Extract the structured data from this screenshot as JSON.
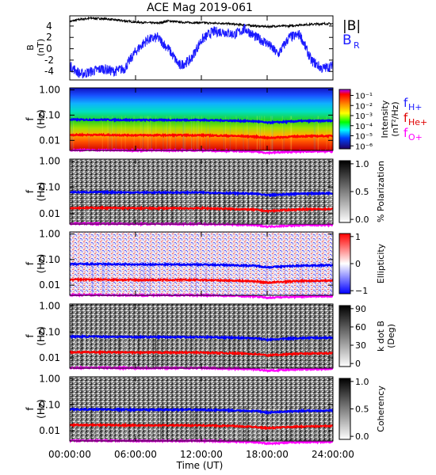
{
  "title": "ACE Mag 2019-061",
  "xlabel": "Time (UT)",
  "x_ticks": [
    "00:00:00",
    "06:00:00",
    "12:00:00",
    "18:00:00",
    "24:00:00"
  ],
  "x_tick_hours": [
    0,
    6,
    12,
    18,
    24
  ],
  "freq_ticks": [
    "1.00",
    "0.10",
    "0.01"
  ],
  "freq_tick_values": [
    1.0,
    0.1,
    0.01
  ],
  "freq_range_hz": [
    0.004,
    1.2
  ],
  "panel_ylabel_f": "f",
  "panel_ylabel_hz": "(Hz)",
  "colors": {
    "B_total": "#000000",
    "B_R": "#1a1aff",
    "f_H": "#0000ff",
    "f_He": "#ff0000",
    "f_O": "#ff00ff"
  },
  "legends": {
    "B_total_label": "|B|",
    "B_R_label": "B",
    "B_R_sub": "R",
    "fH_label": "f",
    "fH_sub": "H+",
    "fHe_label": "f",
    "fHe_sub": "He+",
    "fO_label": "f",
    "fO_sub": "O+"
  },
  "colorbars": [
    {
      "label_line1": "Intensity",
      "label_line2": "(nT²/Hz)",
      "ticks": [
        "10⁻¹",
        "10⁻²",
        "10⁻³",
        "10⁻⁴",
        "10⁻⁵",
        "10⁻⁶"
      ],
      "tick_fracs": [
        0.1,
        0.27,
        0.44,
        0.61,
        0.78,
        0.95
      ],
      "scale": "rainbow"
    },
    {
      "label_line1": "% Polarization",
      "label_line2": "",
      "ticks": [
        "1.0",
        "0.5",
        "0.0"
      ],
      "tick_fracs": [
        0.05,
        0.5,
        0.95
      ],
      "scale": "gray"
    },
    {
      "label_line1": "Ellipticity",
      "label_line2": "",
      "ticks": [
        "1",
        "0",
        "−1"
      ],
      "tick_fracs": [
        0.05,
        0.5,
        0.95
      ],
      "scale": "bwr"
    },
    {
      "label_line1": "k dot B",
      "label_line2": "(Deg)",
      "ticks": [
        "90",
        "60",
        "30",
        "0"
      ],
      "tick_fracs": [
        0.05,
        0.35,
        0.65,
        0.95
      ],
      "scale": "gray"
    },
    {
      "label_line1": "Coherency",
      "label_line2": "",
      "ticks": [
        "1.0",
        "0.5",
        "0.0"
      ],
      "tick_fracs": [
        0.05,
        0.5,
        0.95
      ],
      "scale": "gray"
    }
  ],
  "chart_data": [
    {
      "type": "line",
      "title": "ACE Mag 2019-061",
      "ylabel": "B (nT)",
      "yticks": [
        4,
        2,
        0,
        -2,
        -4
      ],
      "ylim": [
        -5.5,
        5.8
      ],
      "series": [
        {
          "name": "|B|",
          "x_hours": [
            0,
            1,
            2,
            3,
            4,
            5,
            6,
            7,
            8,
            9,
            10,
            11,
            12,
            13,
            14,
            15,
            16,
            17,
            18,
            19,
            20,
            21,
            22,
            23,
            24
          ],
          "values": [
            4.8,
            5.2,
            5.4,
            5.3,
            5.1,
            4.9,
            4.7,
            4.6,
            4.5,
            4.9,
            4.7,
            4.6,
            4.6,
            4.5,
            4.5,
            4.3,
            4.2,
            4.0,
            3.9,
            4.0,
            4.0,
            4.2,
            4.3,
            4.4,
            4.4
          ]
        },
        {
          "name": "B_R",
          "x_hours": [
            0,
            1,
            2,
            3,
            4,
            5,
            6,
            7,
            8,
            9,
            10,
            11,
            12,
            13,
            14,
            15,
            16,
            17,
            18,
            19,
            20,
            21,
            22,
            23,
            24
          ],
          "values": [
            -3.0,
            -4.5,
            -4.0,
            -3.5,
            -4.0,
            -3.5,
            -0.5,
            1.5,
            2.0,
            0.0,
            -3.0,
            -2.0,
            1.5,
            3.0,
            3.0,
            2.5,
            3.5,
            2.0,
            1.0,
            -1.0,
            2.0,
            2.5,
            -2.0,
            -3.5,
            -3.0
          ]
        }
      ]
    },
    {
      "type": "heatmap",
      "ylabel": "f (Hz)",
      "colorbar": "Intensity (nT²/Hz)",
      "series": [
        {
          "name": "f_H+",
          "x_hours": [
            0,
            3,
            6,
            9,
            12,
            15,
            17,
            18,
            21,
            24
          ],
          "values": [
            0.066,
            0.066,
            0.064,
            0.064,
            0.064,
            0.06,
            0.057,
            0.05,
            0.058,
            0.06
          ]
        },
        {
          "name": "f_He+",
          "x_hours": [
            0,
            3,
            6,
            9,
            12,
            15,
            17,
            18,
            21,
            24
          ],
          "values": [
            0.0165,
            0.0165,
            0.016,
            0.016,
            0.016,
            0.015,
            0.014,
            0.0125,
            0.0145,
            0.015
          ]
        },
        {
          "name": "f_O+",
          "x_hours": [
            0,
            3,
            6,
            9,
            12,
            15,
            17,
            18,
            21,
            24
          ],
          "values": [
            0.0041,
            0.0041,
            0.004,
            0.004,
            0.004,
            0.0038,
            0.0036,
            0.0032,
            0.0036,
            0.0037
          ]
        }
      ]
    },
    {
      "type": "heatmap",
      "ylabel": "f (Hz)",
      "colorbar": "% Polarization",
      "zlim": [
        0.0,
        1.0
      ]
    },
    {
      "type": "heatmap",
      "ylabel": "f (Hz)",
      "colorbar": "Ellipticity",
      "zlim": [
        -1,
        1
      ]
    },
    {
      "type": "heatmap",
      "ylabel": "f (Hz)",
      "colorbar": "k dot B (Deg)",
      "zlim": [
        0,
        90
      ]
    },
    {
      "type": "heatmap",
      "ylabel": "f (Hz)",
      "colorbar": "Coherency",
      "zlim": [
        0.0,
        1.0
      ]
    }
  ]
}
